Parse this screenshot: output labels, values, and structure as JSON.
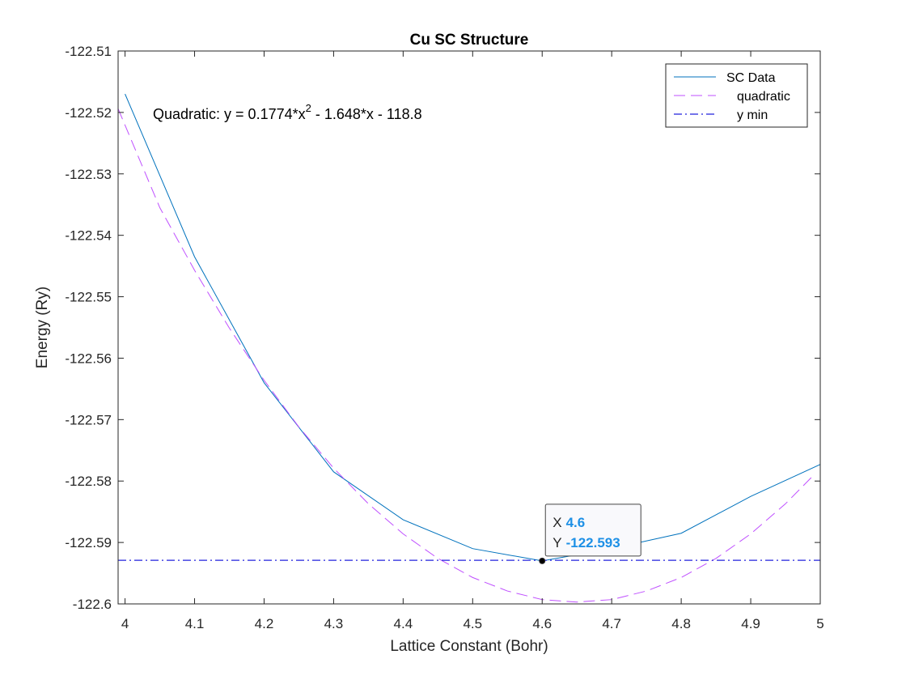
{
  "chart_data": {
    "type": "line",
    "title": "Cu SC Structure",
    "xlabel": "Lattice Constant (Bohr)",
    "ylabel": "Energy (Ry)",
    "xlim": [
      3.99,
      5.0
    ],
    "ylim": [
      -122.6,
      -122.51
    ],
    "xticks": [
      "4",
      "4.1",
      "4.2",
      "4.3",
      "4.4",
      "4.5",
      "4.6",
      "4.7",
      "4.8",
      "4.9",
      "5"
    ],
    "yticks": [
      "-122.51",
      "-122.52",
      "-122.53",
      "-122.54",
      "-122.55",
      "-122.56",
      "-122.57",
      "-122.58",
      "-122.59",
      "-122.6"
    ],
    "grid": false,
    "legend_position": "top-right",
    "colors": {
      "sc_data": "#0072bd",
      "quadratic": "#bf4fff",
      "ymin": "#2222dd",
      "datatip_value": "#1e90e6"
    },
    "series": [
      {
        "name": "SC Data",
        "style": "solid",
        "x": [
          4.0,
          4.1,
          4.2,
          4.3,
          4.4,
          4.5,
          4.6,
          4.7,
          4.8,
          4.9,
          5.0
        ],
        "y": [
          -122.517,
          -122.5435,
          -122.564,
          -122.5785,
          -122.5863,
          -122.591,
          -122.593,
          -122.591,
          -122.5885,
          -122.5825,
          -122.5773
        ]
      },
      {
        "name": "quadratic",
        "style": "dashed",
        "x": [
          3.99,
          4.05,
          4.1,
          4.15,
          4.2,
          4.25,
          4.3,
          4.35,
          4.4,
          4.45,
          4.5,
          4.55,
          4.6,
          4.65,
          4.7,
          4.75,
          4.8,
          4.85,
          4.9,
          4.95,
          4.99
        ],
        "y": [
          -122.5194,
          -122.5355,
          -122.5457,
          -122.5551,
          -122.5636,
          -122.5712,
          -122.5779,
          -122.5837,
          -122.5886,
          -122.5926,
          -122.5957,
          -122.5979,
          -122.5993,
          -122.5997,
          -122.5993,
          -122.5979,
          -122.5957,
          -122.5926,
          -122.5886,
          -122.5837,
          -122.5791
        ]
      },
      {
        "name": "y min",
        "style": "dashdot",
        "x": [
          3.99,
          5.0
        ],
        "y": [
          -122.5929,
          -122.5929
        ]
      }
    ],
    "annotation": {
      "prefix": "Quadratic:  y = 0.1774*x",
      "exponent": "2",
      "suffix": " - 1.648*x - 118.8"
    },
    "datatip": {
      "x": 4.6,
      "y": -122.593,
      "x_label": "X",
      "y_label": "Y",
      "x_value": "4.6",
      "y_value": "-122.593"
    }
  }
}
